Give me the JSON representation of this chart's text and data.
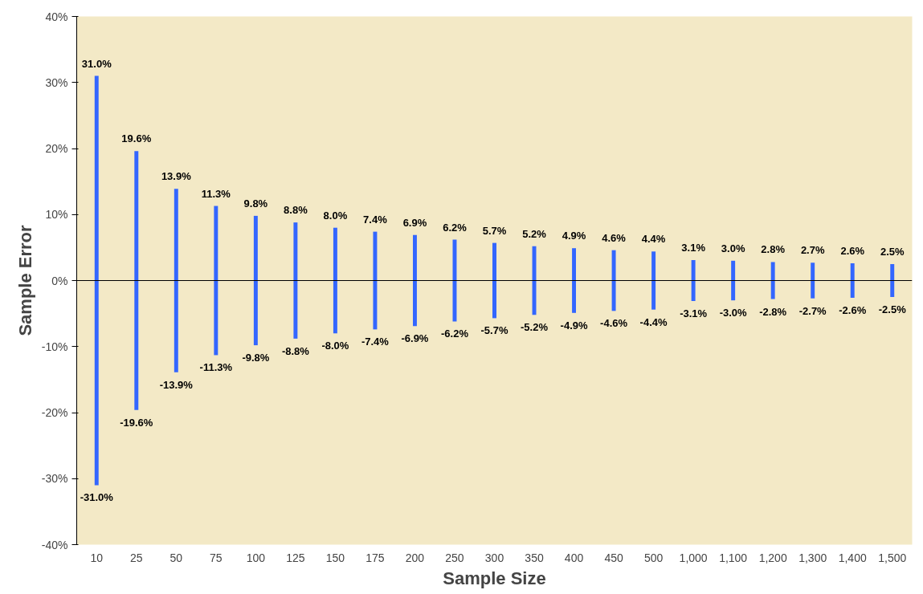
{
  "chart_data": {
    "type": "bar",
    "stacked": true,
    "xlabel": "Sample Size",
    "ylabel": "Sample Error",
    "categories": [
      "10",
      "25",
      "50",
      "75",
      "100",
      "125",
      "150",
      "175",
      "200",
      "250",
      "300",
      "350",
      "400",
      "450",
      "500",
      "1,000",
      "1,100",
      "1,200",
      "1,300",
      "1,400",
      "1,500"
    ],
    "series": [
      {
        "color": "#3366ff",
        "values": [
          31.0,
          19.6,
          13.9,
          11.3,
          9.8,
          8.8,
          8.0,
          7.4,
          6.9,
          6.2,
          5.7,
          5.2,
          4.9,
          4.6,
          4.4,
          3.1,
          3.0,
          2.8,
          2.7,
          2.6,
          2.5
        ],
        "value_labels": [
          "31.0%",
          "19.6%",
          "13.9%",
          "11.3%",
          "9.8%",
          "8.8%",
          "8.0%",
          "7.4%",
          "6.9%",
          "6.2%",
          "5.7%",
          "5.2%",
          "4.9%",
          "4.6%",
          "4.4%",
          "3.1%",
          "3.0%",
          "2.8%",
          "2.7%",
          "2.6%",
          "2.5%"
        ]
      },
      {
        "color": "#3366ff",
        "values": [
          -31.0,
          -19.6,
          -13.9,
          -11.3,
          -9.8,
          -8.8,
          -8.0,
          -7.4,
          -6.9,
          -6.2,
          -5.7,
          -5.2,
          -4.9,
          -4.6,
          -4.4,
          -3.1,
          -3.0,
          -2.8,
          -2.7,
          -2.6,
          -2.5
        ],
        "value_labels": [
          "-31.0%",
          "-19.6%",
          "-13.9%",
          "-11.3%",
          "-9.8%",
          "-8.8%",
          "-8.0%",
          "-7.4%",
          "-6.9%",
          "-6.2%",
          "-5.7%",
          "-5.2%",
          "-4.9%",
          "-4.6%",
          "-4.4%",
          "-3.1%",
          "-3.0%",
          "-2.8%",
          "-2.7%",
          "-2.6%",
          "-2.5%"
        ]
      }
    ],
    "ylim": [
      -40,
      40
    ],
    "yticks": [
      {
        "value": -40,
        "label": "-40%"
      },
      {
        "value": -30,
        "label": "-30%"
      },
      {
        "value": -20,
        "label": "-20%"
      },
      {
        "value": -10,
        "label": "-10%"
      },
      {
        "value": 0,
        "label": "0%"
      },
      {
        "value": 10,
        "label": "10%"
      },
      {
        "value": 20,
        "label": "20%"
      },
      {
        "value": 30,
        "label": "30%"
      },
      {
        "value": 40,
        "label": "40%"
      }
    ],
    "ref_lines": [
      {
        "axis": "y",
        "value": 0,
        "color": "#000000"
      }
    ],
    "grid": false
  }
}
